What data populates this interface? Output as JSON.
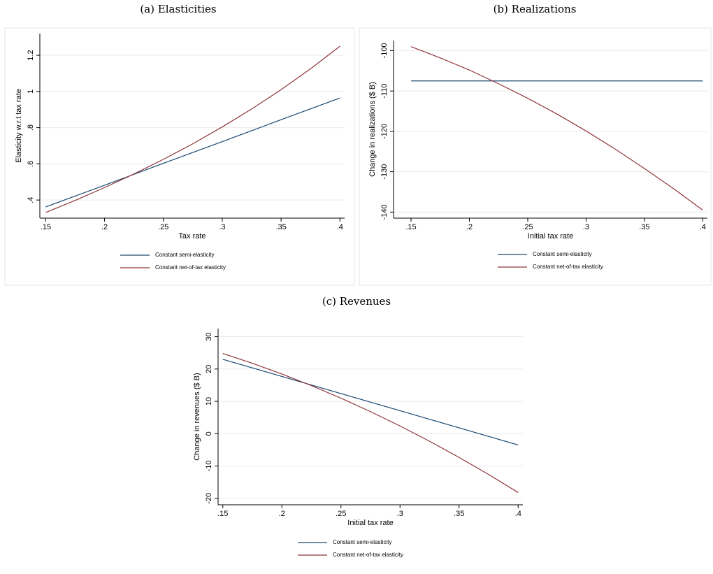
{
  "chart_data": [
    {
      "type": "line",
      "title": "(a) Elasticities",
      "xlabel": "Tax rate",
      "ylabel": "Elasticity w.r.t tax rate",
      "x": [
        0.15,
        0.175,
        0.2,
        0.225,
        0.25,
        0.275,
        0.3,
        0.325,
        0.35,
        0.375,
        0.4
      ],
      "series": [
        {
          "name": "Constant semi-elasticity",
          "color": "#1a476f",
          "values": [
            0.362,
            0.422,
            0.482,
            0.542,
            0.603,
            0.663,
            0.723,
            0.783,
            0.844,
            0.904,
            0.964
          ]
        },
        {
          "name": "Constant net-of-tax elasticity",
          "color": "#90353b",
          "values": [
            0.331,
            0.398,
            0.469,
            0.544,
            0.625,
            0.711,
            0.804,
            0.903,
            1.01,
            1.125,
            1.25
          ]
        }
      ],
      "xlim": [
        0.145,
        0.404
      ],
      "ylim": [
        0.3,
        1.32
      ],
      "xticks": [
        {
          "value": 0.15,
          "label": ".15"
        },
        {
          "value": 0.2,
          "label": ".2"
        },
        {
          "value": 0.25,
          "label": ".25"
        },
        {
          "value": 0.3,
          "label": ".3"
        },
        {
          "value": 0.35,
          "label": ".35"
        },
        {
          "value": 0.4,
          "label": ".4"
        }
      ],
      "yticks": [
        {
          "value": 0.4,
          "label": ".4"
        },
        {
          "value": 0.6,
          "label": ".6"
        },
        {
          "value": 0.8,
          "label": ".8"
        },
        1,
        {
          "value": 1.2,
          "label": "1.2"
        }
      ],
      "grid": true,
      "legend": "bottom"
    },
    {
      "type": "line",
      "title": "(b) Realizations",
      "xlabel": "Initial tax rate",
      "ylabel": "Change in realizations ($ B)",
      "x": [
        0.15,
        0.175,
        0.2,
        0.225,
        0.25,
        0.275,
        0.3,
        0.325,
        0.35,
        0.375,
        0.4
      ],
      "series": [
        {
          "name": "Constant semi-elasticity",
          "color": "#1a476f",
          "values": [
            -107.5,
            -107.5,
            -107.5,
            -107.5,
            -107.5,
            -107.5,
            -107.5,
            -107.5,
            -107.5,
            -107.5,
            -107.5
          ]
        },
        {
          "name": "Constant net-of-tax elasticity",
          "color": "#90353b",
          "values": [
            -99,
            -101.8,
            -104.8,
            -108.2,
            -111.8,
            -115.7,
            -119.9,
            -124.4,
            -129.2,
            -134.2,
            -139.5
          ]
        }
      ],
      "xlim": [
        0.135,
        0.404
      ],
      "ylim": [
        -141.5,
        -97.5
      ],
      "xticks": [
        {
          "value": 0.15,
          "label": ".15"
        },
        {
          "value": 0.2,
          "label": ".2"
        },
        {
          "value": 0.25,
          "label": ".25"
        },
        {
          "value": 0.3,
          "label": ".3"
        },
        {
          "value": 0.35,
          "label": ".35"
        },
        {
          "value": 0.4,
          "label": ".4"
        }
      ],
      "yticks": [
        -140,
        -130,
        -120,
        -110,
        -100
      ],
      "grid": true,
      "legend": "bottom"
    },
    {
      "type": "line",
      "title": "(c) Revenues",
      "xlabel": "Initial tax rate",
      "ylabel": "Change in revenues ($ B)",
      "x": [
        0.15,
        0.175,
        0.2,
        0.225,
        0.25,
        0.275,
        0.3,
        0.325,
        0.35,
        0.375,
        0.4
      ],
      "series": [
        {
          "name": "Constant semi-elasticity",
          "color": "#1a476f",
          "values": [
            23,
            20.35,
            17.7,
            15.05,
            12.4,
            9.75,
            7.1,
            4.45,
            1.8,
            -0.85,
            -3.5
          ]
        },
        {
          "name": "Constant net-of-tax elasticity",
          "color": "#90353b",
          "values": [
            24.8,
            21.77,
            18.46,
            14.86,
            10.98,
            6.82,
            2.38,
            -2.34,
            -7.34,
            -12.62,
            -18.2
          ]
        }
      ],
      "xlim": [
        0.146,
        0.404
      ],
      "ylim": [
        -22,
        32.5
      ],
      "xticks": [
        {
          "value": 0.15,
          "label": ".15"
        },
        {
          "value": 0.2,
          "label": ".2"
        },
        {
          "value": 0.25,
          "label": ".25"
        },
        {
          "value": 0.3,
          "label": ".3"
        },
        {
          "value": 0.35,
          "label": ".35"
        },
        {
          "value": 0.4,
          "label": ".4"
        }
      ],
      "yticks": [
        -20,
        -10,
        0,
        10,
        20,
        30
      ],
      "grid": true,
      "legend": "bottom"
    }
  ]
}
